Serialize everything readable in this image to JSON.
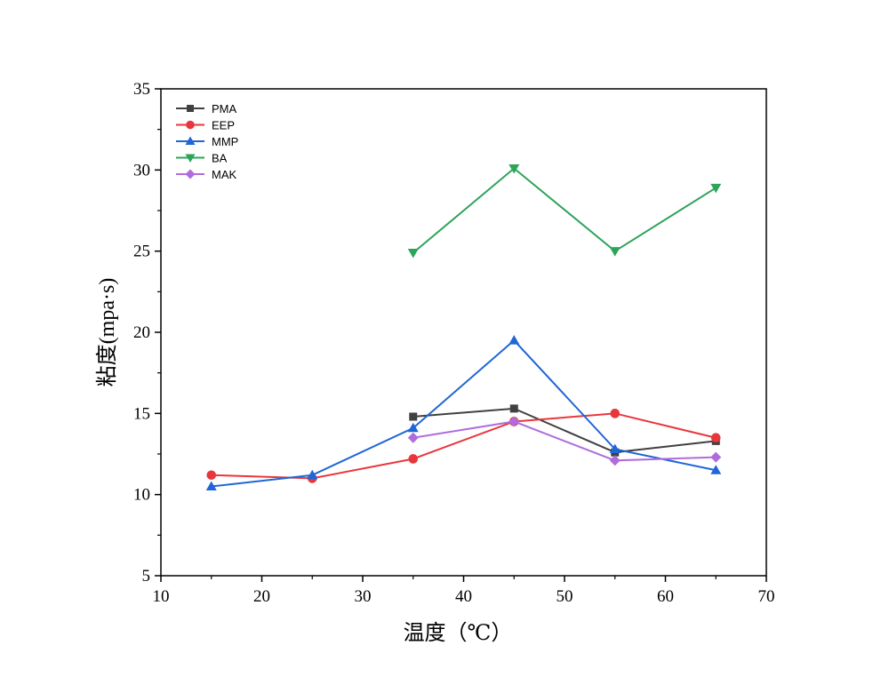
{
  "chart_data": {
    "type": "line",
    "xlabel": "温度（℃）",
    "ylabel": "粘度(mpa·s)",
    "xlim": [
      10,
      70
    ],
    "ylim": [
      5,
      35
    ],
    "x_ticks": [
      10,
      20,
      30,
      40,
      50,
      60,
      70
    ],
    "y_ticks": [
      5,
      10,
      15,
      20,
      25,
      30,
      35
    ],
    "grid": false,
    "legend_position": "top-left",
    "series": [
      {
        "name": "PMA",
        "color": "#404040",
        "marker": "square",
        "x": [
          35,
          45,
          55,
          65
        ],
        "y": [
          14.8,
          15.3,
          12.6,
          13.3
        ]
      },
      {
        "name": "EEP",
        "color": "#e8373c",
        "marker": "circle",
        "x": [
          15,
          25,
          35,
          45,
          55,
          65
        ],
        "y": [
          11.2,
          11.0,
          12.2,
          14.5,
          15.0,
          13.5
        ]
      },
      {
        "name": "MMP",
        "color": "#1f66d6",
        "marker": "triangle-up",
        "x": [
          15,
          25,
          35,
          45,
          55,
          65
        ],
        "y": [
          10.5,
          11.2,
          14.1,
          19.5,
          12.8,
          11.5
        ]
      },
      {
        "name": "BA",
        "color": "#2ea35a",
        "marker": "triangle-down",
        "x": [
          35,
          45,
          55,
          65
        ],
        "y": [
          24.9,
          30.1,
          25.0,
          28.9
        ]
      },
      {
        "name": "MAK",
        "color": "#b06cdc",
        "marker": "diamond",
        "x": [
          35,
          45,
          55,
          65
        ],
        "y": [
          13.5,
          14.5,
          12.1,
          12.3
        ]
      }
    ]
  }
}
